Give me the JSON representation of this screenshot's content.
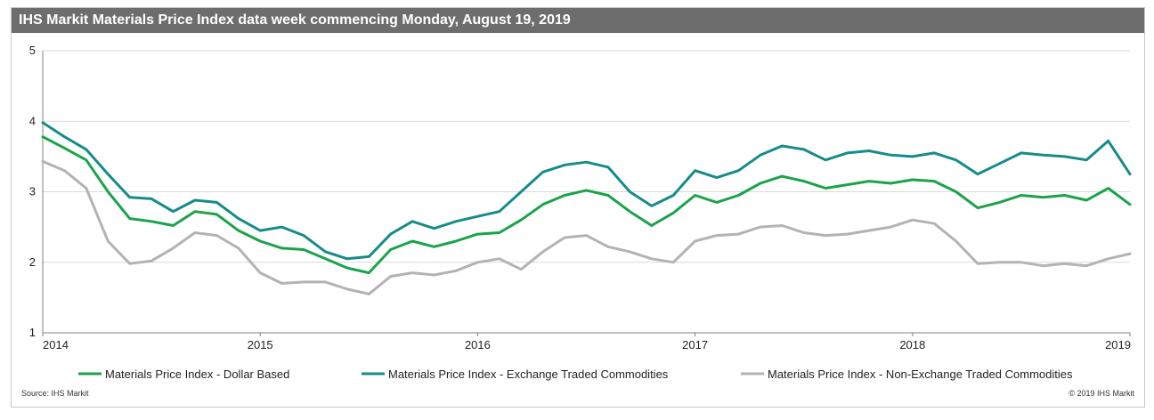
{
  "title": "IHS Markit Materials Price Index data week commencing Monday, August 19, 2019",
  "footer": {
    "source": "Source: IHS Markit",
    "copyright": "© 2019 IHS Markit"
  },
  "colors": {
    "dollar": "#1aa34a",
    "exchange": "#168c8a",
    "nonexchange": "#b3b3b3",
    "grid": "#d9d9d9",
    "axis": "#808080"
  },
  "chart_data": {
    "type": "line",
    "title": "IHS Markit Materials Price Index data week commencing Monday, August 19, 2019",
    "xlabel": "",
    "ylabel": "",
    "xlim": [
      2014,
      2019
    ],
    "ylim": [
      1,
      5
    ],
    "x_ticks": [
      "2014",
      "2015",
      "2016",
      "2017",
      "2018",
      "2019"
    ],
    "y_ticks": [
      "1",
      "2",
      "3",
      "4",
      "5"
    ],
    "grid": true,
    "legend_position": "bottom",
    "x": [
      2014.0,
      2014.1,
      2014.2,
      2014.3,
      2014.4,
      2014.5,
      2014.6,
      2014.7,
      2014.8,
      2014.9,
      2015.0,
      2015.1,
      2015.2,
      2015.3,
      2015.4,
      2015.5,
      2015.6,
      2015.7,
      2015.8,
      2015.9,
      2016.0,
      2016.1,
      2016.2,
      2016.3,
      2016.4,
      2016.5,
      2016.6,
      2016.7,
      2016.8,
      2016.9,
      2017.0,
      2017.1,
      2017.2,
      2017.3,
      2017.4,
      2017.5,
      2017.6,
      2017.7,
      2017.8,
      2017.9,
      2018.0,
      2018.1,
      2018.2,
      2018.3,
      2018.4,
      2018.5,
      2018.6,
      2018.7,
      2018.8,
      2018.9,
      2019.0
    ],
    "series": [
      {
        "name": "Materials Price Index - Dollar Based",
        "values": [
          3.78,
          3.62,
          3.45,
          3.0,
          2.62,
          2.58,
          2.52,
          2.72,
          2.68,
          2.45,
          2.3,
          2.2,
          2.18,
          2.05,
          1.92,
          1.85,
          2.18,
          2.3,
          2.22,
          2.3,
          2.4,
          2.42,
          2.6,
          2.82,
          2.95,
          3.02,
          2.95,
          2.72,
          2.52,
          2.7,
          2.95,
          2.85,
          2.95,
          3.12,
          3.22,
          3.15,
          3.05,
          3.1,
          3.15,
          3.12,
          3.17,
          3.15,
          3.0,
          2.77,
          2.85,
          2.95,
          2.92,
          2.95,
          2.88,
          3.05,
          2.82
        ]
      },
      {
        "name": "Materials Price Index - Exchange Traded Commodities",
        "values": [
          3.98,
          3.78,
          3.6,
          3.25,
          2.92,
          2.9,
          2.72,
          2.88,
          2.85,
          2.62,
          2.45,
          2.5,
          2.38,
          2.15,
          2.05,
          2.08,
          2.4,
          2.58,
          2.48,
          2.58,
          2.65,
          2.72,
          3.0,
          3.28,
          3.38,
          3.42,
          3.35,
          3.0,
          2.8,
          2.95,
          3.3,
          3.2,
          3.3,
          3.52,
          3.65,
          3.6,
          3.45,
          3.55,
          3.58,
          3.52,
          3.5,
          3.55,
          3.45,
          3.25,
          3.4,
          3.55,
          3.52,
          3.5,
          3.45,
          3.72,
          3.25
        ]
      },
      {
        "name": "Materials Price Index - Non-Exchange Traded Commodities",
        "values": [
          3.43,
          3.3,
          3.05,
          2.3,
          1.98,
          2.02,
          2.2,
          2.42,
          2.38,
          2.2,
          1.85,
          1.7,
          1.72,
          1.72,
          1.62,
          1.55,
          1.8,
          1.85,
          1.82,
          1.88,
          2.0,
          2.05,
          1.9,
          2.15,
          2.35,
          2.38,
          2.22,
          2.15,
          2.05,
          2.0,
          2.3,
          2.38,
          2.4,
          2.5,
          2.52,
          2.42,
          2.38,
          2.4,
          2.45,
          2.5,
          2.6,
          2.55,
          2.3,
          1.98,
          2.0,
          2.0,
          1.95,
          1.98,
          1.95,
          2.05,
          2.12
        ]
      }
    ]
  }
}
